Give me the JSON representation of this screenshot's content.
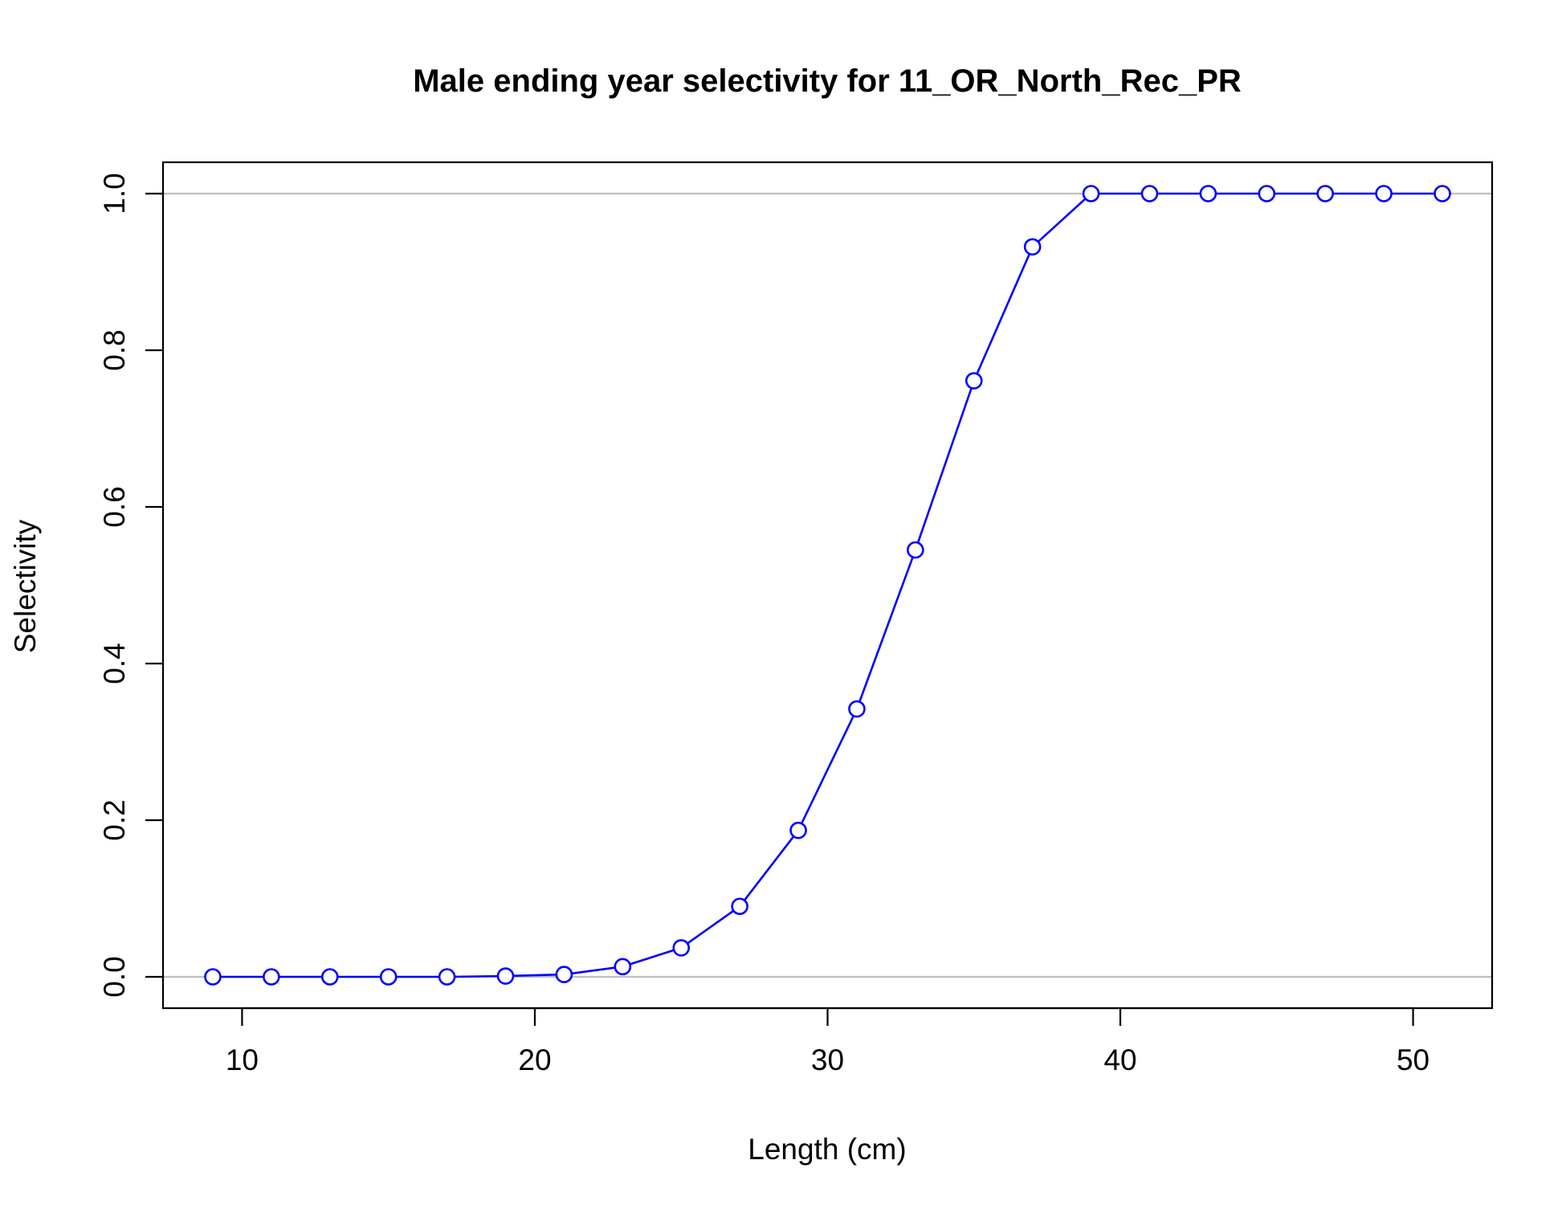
{
  "chart_data": {
    "type": "line",
    "title": "Male ending year selectivity for 11_OR_North_Rec_PR",
    "xlabel": "Length (cm)",
    "ylabel": "Selectivity",
    "xlim": [
      7.3,
      52.7
    ],
    "ylim": [
      -0.04,
      1.04
    ],
    "x_ticks": [
      10,
      20,
      30,
      40,
      50
    ],
    "y_ticks": [
      0.0,
      0.2,
      0.4,
      0.6,
      0.8,
      1.0
    ],
    "x_tick_labels": [
      "10",
      "20",
      "30",
      "40",
      "50"
    ],
    "y_tick_labels": [
      "0.0",
      "0.2",
      "0.4",
      "0.6",
      "0.8",
      "1.0"
    ],
    "reference_lines": [
      0,
      1
    ],
    "grid": false,
    "legend": "none",
    "marker": "open-circle",
    "series": [
      {
        "color": "#0000ff",
        "x": [
          9,
          11,
          13,
          15,
          17,
          19,
          21,
          23,
          25,
          27,
          29,
          31,
          33,
          35,
          37,
          39,
          41,
          43,
          45,
          47,
          49,
          51
        ],
        "values": [
          0.0,
          0.0,
          0.0,
          0.0,
          0.0,
          0.001,
          0.003,
          0.013,
          0.037,
          0.09,
          0.187,
          0.342,
          0.545,
          0.761,
          0.932,
          1.0,
          1.0,
          1.0,
          1.0,
          1.0,
          1.0,
          1.0
        ]
      }
    ],
    "colors": {
      "series": "#0000ff",
      "reference_line": "#bebebe",
      "axis": "#000000"
    }
  }
}
